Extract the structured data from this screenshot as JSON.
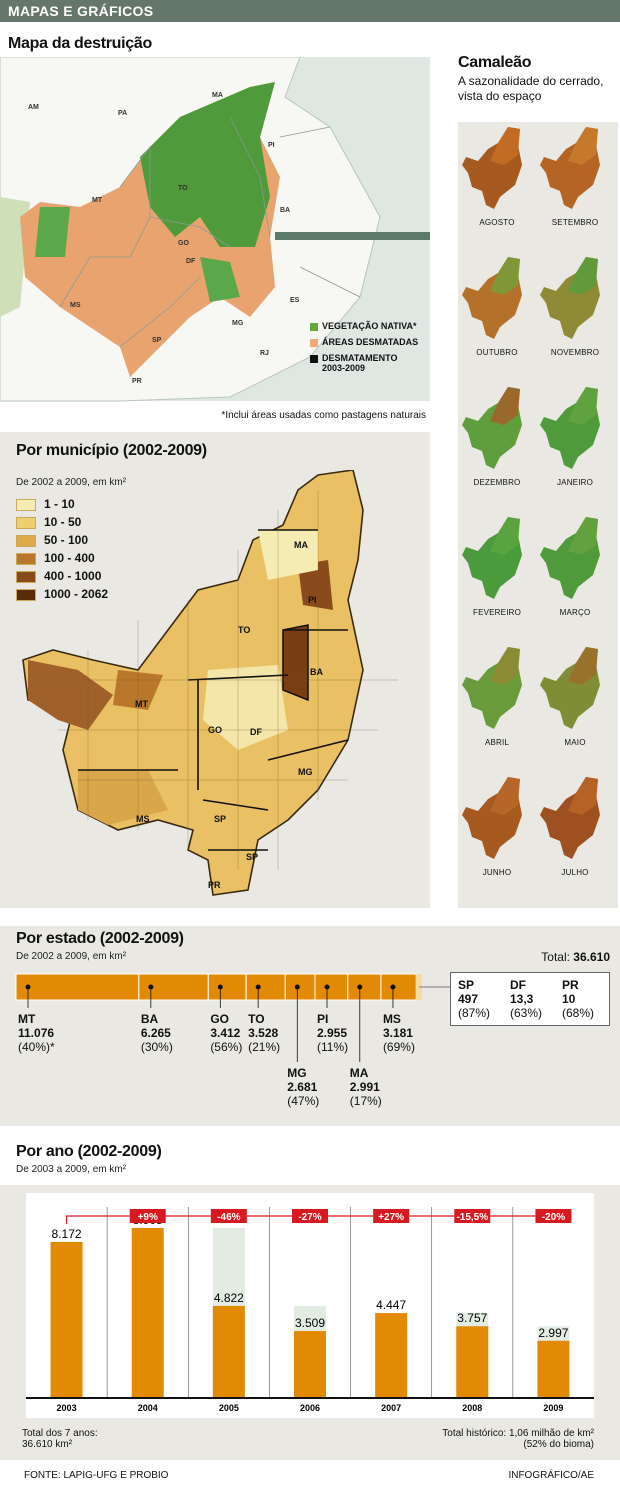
{
  "header": {
    "title": "MAPAS E GRÁFICOS"
  },
  "map1": {
    "title": "Mapa da destruição",
    "legend": [
      {
        "label": "VEGETAÇÃO NATIVA*",
        "color": "#5fa83a"
      },
      {
        "label": "ÁREAS DESMATADAS",
        "color": "#f0a87a"
      },
      {
        "label": "DESMATAMENTO 2003-2009",
        "color": "#111111"
      }
    ],
    "note": "*Inclui áreas usadas como pastagens naturais",
    "states": [
      "AM",
      "PA",
      "MA",
      "PI",
      "TO",
      "MT",
      "GO",
      "DF",
      "BA",
      "MS",
      "SP",
      "MG",
      "ES",
      "RJ",
      "PR"
    ]
  },
  "camaleao": {
    "title": "Camaleão",
    "subtitle1": "A sazonalidade do cerrado,",
    "subtitle2": "vista do espaço",
    "months": [
      "AGOSTO",
      "SETEMBRO",
      "OUTUBRO",
      "NOVEMBRO",
      "DEZEMBRO",
      "JANEIRO",
      "FEVEREIRO",
      "MARÇO",
      "ABRIL",
      "MAIO",
      "JUNHO",
      "JULHO"
    ]
  },
  "municipio": {
    "title": "Por município (2002-2009)",
    "subtitle": "De 2002 a 2009, em km²",
    "legend": [
      {
        "label": "1 - 10",
        "color": "#f5ecb3"
      },
      {
        "label": "10 - 50",
        "color": "#ecd070"
      },
      {
        "label": "50 - 100",
        "color": "#e0a94a"
      },
      {
        "label": "100 - 400",
        "color": "#b9772b"
      },
      {
        "label": "400 - 1000",
        "color": "#8a4b1c"
      },
      {
        "label": "1000 - 2062",
        "color": "#5a2a0c"
      }
    ],
    "states": [
      "MA",
      "PI",
      "TO",
      "BA",
      "MT",
      "GO",
      "DF",
      "MG",
      "MS",
      "SP",
      "SP",
      "PR"
    ]
  },
  "estado": {
    "title": "Por estado (2002-2009)",
    "subtitle": "De 2002 a 2009, em km²",
    "total_label": "Total:",
    "total_value": "36.610",
    "bar_color": "#e38a05",
    "items": [
      {
        "state": "MT",
        "value": "11.076",
        "pct": "(40%)*"
      },
      {
        "state": "BA",
        "value": "6.265",
        "pct": "(30%)"
      },
      {
        "state": "GO",
        "value": "3.412",
        "pct": "(56%)"
      },
      {
        "state": "TO",
        "value": "3.528",
        "pct": "(21%)"
      },
      {
        "state": "MG",
        "value": "2.681",
        "pct": "(47%)"
      },
      {
        "state": "PI",
        "value": "2.955",
        "pct": "(11%)"
      },
      {
        "state": "MA",
        "value": "2.991",
        "pct": "(17%)"
      },
      {
        "state": "MS",
        "value": "3.181",
        "pct": "(69%)"
      }
    ],
    "small": [
      {
        "state": "SP",
        "value": "497",
        "pct": "(87%)"
      },
      {
        "state": "DF",
        "value": "13,3",
        "pct": "(63%)"
      },
      {
        "state": "PR",
        "value": "10",
        "pct": "(68%)"
      }
    ]
  },
  "chart_data": {
    "type": "bar",
    "title": "Por ano (2002-2009)",
    "subtitle": "De 2003 a 2009, em km²",
    "categories": [
      "2003",
      "2004",
      "2005",
      "2006",
      "2007",
      "2008",
      "2009"
    ],
    "values": [
      8172,
      8905,
      4822,
      3509,
      4447,
      3757,
      2997
    ],
    "value_labels": [
      "8.172",
      "8.905",
      "4.822",
      "3.509",
      "4.447",
      "3.757",
      "2.997"
    ],
    "changes": [
      "",
      "+9%",
      "-46%",
      "-27%",
      "+27%",
      "-15,5%",
      "-20%"
    ],
    "ylim": [
      0,
      10000
    ],
    "bar_color": "#e38a05",
    "change_color": "#d71920"
  },
  "ano": {
    "total_left_1": "Total dos 7 anos:",
    "total_left_2": "36.610 km²",
    "total_right_1": "Total histórico: 1,06 milhão de km²",
    "total_right_2": "(52% do bioma)"
  },
  "footer": {
    "source": "FONTE: LAPIG-UFG E PROBIO",
    "credit": "INFOGRÁFICO/AE"
  }
}
